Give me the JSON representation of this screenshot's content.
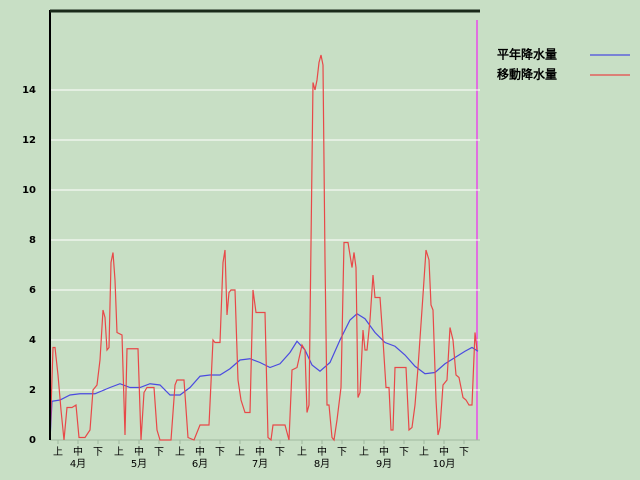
{
  "chart_data": {
    "type": "line",
    "ylim": [
      0,
      17.2
    ],
    "yticks": [
      0,
      2,
      4,
      6,
      8,
      10,
      12,
      14
    ],
    "grid": true,
    "xlim": [
      0,
      215
    ],
    "xticks": [
      {
        "value": 4,
        "label": "上"
      },
      {
        "value": 14,
        "label": "中"
      },
      {
        "value": 24,
        "label": "下"
      },
      {
        "value": 34.5,
        "label": "上"
      },
      {
        "value": 44.5,
        "label": "中"
      },
      {
        "value": 54.5,
        "label": "下"
      },
      {
        "value": 65,
        "label": "上"
      },
      {
        "value": 75,
        "label": "中"
      },
      {
        "value": 85,
        "label": "下"
      },
      {
        "value": 95,
        "label": "上"
      },
      {
        "value": 105,
        "label": "中"
      },
      {
        "value": 115,
        "label": "下"
      },
      {
        "value": 126,
        "label": "上"
      },
      {
        "value": 136,
        "label": "中"
      },
      {
        "value": 146,
        "label": "下"
      },
      {
        "value": 157,
        "label": "上"
      },
      {
        "value": 167,
        "label": "中"
      },
      {
        "value": 177,
        "label": "下"
      },
      {
        "value": 187,
        "label": "上"
      },
      {
        "value": 197,
        "label": "中"
      },
      {
        "value": 207,
        "label": "下"
      }
    ],
    "month_ticks": [
      {
        "value": 14,
        "label": "4月"
      },
      {
        "value": 44.5,
        "label": "5月"
      },
      {
        "value": 75,
        "label": "6月"
      },
      {
        "value": 105,
        "label": "7月"
      },
      {
        "value": 136,
        "label": "8月"
      },
      {
        "value": 167,
        "label": "9月"
      },
      {
        "value": 197,
        "label": "10月"
      }
    ],
    "series": [
      {
        "name": "平年降水量",
        "color": "#4a4ae0",
        "x": [
          0,
          1,
          5,
          10,
          15,
          22.5,
          30,
          35,
          40,
          45,
          50,
          55,
          60,
          65,
          70,
          75,
          80,
          85,
          90,
          95,
          100,
          105,
          110,
          115,
          120,
          123.5,
          127.5,
          131,
          135,
          140,
          145,
          150,
          153.5,
          157.5,
          162.5,
          167.5,
          172.5,
          177.5,
          182.5,
          187.5,
          192.5,
          197.5,
          202.5,
          207.5,
          211,
          214
        ],
        "values": [
          0,
          1.55,
          1.6,
          1.8,
          1.85,
          1.85,
          2.1,
          2.25,
          2.1,
          2.1,
          2.25,
          2.2,
          1.8,
          1.8,
          2.1,
          2.55,
          2.6,
          2.6,
          2.85,
          3.2,
          3.25,
          3.1,
          2.9,
          3.05,
          3.5,
          3.95,
          3.6,
          3.0,
          2.75,
          3.1,
          4.0,
          4.8,
          5.05,
          4.85,
          4.3,
          3.9,
          3.75,
          3.4,
          2.95,
          2.65,
          2.7,
          3.05,
          3.3,
          3.55,
          3.7,
          3.55
        ]
      },
      {
        "name": "移動降水量",
        "color": "#e84848",
        "x": [
          0,
          1.5,
          2.5,
          4,
          5.5,
          7,
          8.5,
          11,
          13,
          14.5,
          17.5,
          20,
          21.5,
          23.5,
          25,
          26.5,
          27.5,
          28.5,
          29.5,
          30.5,
          31.5,
          32.5,
          33.5,
          36,
          37.5,
          38.5,
          44,
          45.5,
          47,
          48.5,
          52,
          53.5,
          55,
          60.5,
          62.5,
          63.5,
          67,
          69,
          72,
          75,
          79.5,
          81.5,
          82.5,
          85,
          86.5,
          87.5,
          88.5,
          89.5,
          90.5,
          92.5,
          94,
          95.5,
          97.5,
          100,
          101.5,
          103,
          107.5,
          109,
          110.5,
          111.5,
          117.5,
          119.5,
          121,
          123.5,
          126,
          127.5,
          128.5,
          129.5,
          131.5,
          132.5,
          133.5,
          134.5,
          135.5,
          136.5,
          137.5,
          138.5,
          139.5,
          141,
          142,
          143.5,
          145.5,
          147,
          149,
          150,
          151,
          152,
          153,
          154,
          155,
          156.5,
          157.5,
          158.5,
          160,
          161.5,
          162.5,
          165,
          166.5,
          168,
          169.5,
          170.5,
          171.5,
          172.5,
          174,
          178,
          179.5,
          181,
          182.5,
          184,
          186.5,
          188,
          189.5,
          190.5,
          191.5,
          193,
          194,
          195,
          196.5,
          198.5,
          200,
          201.5,
          203,
          204.5,
          206.5,
          208,
          209.5,
          211,
          212.5,
          213.5
        ],
        "values": [
          0,
          3.7,
          3.7,
          2.6,
          1.2,
          0,
          1.3,
          1.3,
          1.4,
          0.1,
          0.1,
          0.4,
          2,
          2.2,
          3.2,
          5.2,
          4.9,
          3.6,
          3.7,
          7.1,
          7.5,
          6.4,
          4.3,
          4.2,
          0.2,
          3.65,
          3.65,
          0,
          1.9,
          2.1,
          2.1,
          0.4,
          0,
          0,
          2.2,
          2.4,
          2.4,
          0.1,
          0,
          0.6,
          0.6,
          4.0,
          3.9,
          3.9,
          7.1,
          7.6,
          5,
          5.9,
          6.0,
          6.0,
          2.4,
          1.6,
          1.1,
          1.1,
          6.0,
          5.1,
          5.1,
          0.1,
          0,
          0.6,
          0.6,
          0,
          2.8,
          2.9,
          3.8,
          3.6,
          1.1,
          1.4,
          14.3,
          14.0,
          14.4,
          15.1,
          15.4,
          15.0,
          7.2,
          1.4,
          1.4,
          0.1,
          0,
          0.8,
          2.1,
          7.9,
          7.9,
          7.4,
          6.9,
          7.5,
          6.9,
          1.7,
          1.9,
          4.4,
          3.6,
          3.6,
          4.8,
          6.6,
          5.7,
          5.7,
          4.0,
          2.1,
          2.1,
          0.4,
          0.4,
          2.9,
          2.9,
          2.9,
          0.4,
          0.5,
          1.4,
          2.9,
          5.8,
          7.6,
          7.2,
          5.4,
          5.2,
          1.6,
          0.2,
          0.5,
          2.2,
          2.4,
          4.5,
          4.0,
          2.6,
          2.5,
          1.7,
          1.6,
          1.4,
          1.4,
          4.3,
          3.6
        ]
      }
    ]
  }
}
